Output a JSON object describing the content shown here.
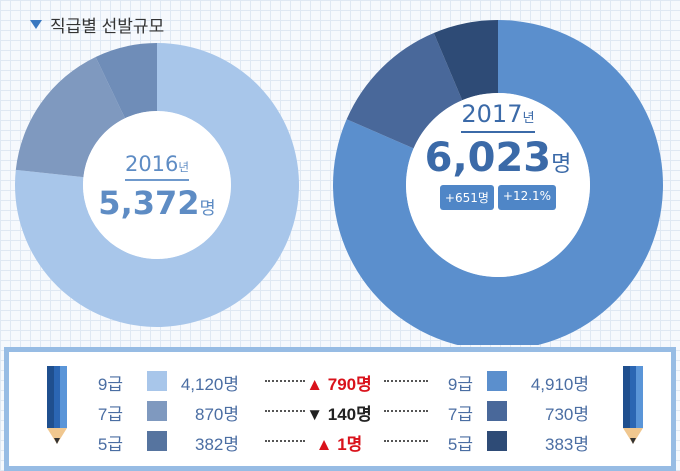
{
  "title": "직급별 선발규모",
  "unit_year": "년",
  "unit_person": "명",
  "colors": {
    "c9_2016": "#a8c6ea",
    "c7_2016": "#7f99bf",
    "c5_2016": "#6f8db8",
    "c9_2017": "#5b8fcd",
    "c7_2017": "#49689a",
    "c5_2017": "#2e4b76"
  },
  "chart_data": [
    {
      "type": "pie",
      "label": "2016년",
      "year": "2016",
      "total": "5,372",
      "categories": [
        "9급",
        "7급",
        "5급"
      ],
      "values": [
        4120,
        870,
        382
      ]
    },
    {
      "type": "pie",
      "label": "2017년",
      "year": "2017",
      "total": "6,023",
      "categories": [
        "9급",
        "7급",
        "5급"
      ],
      "values": [
        4910,
        730,
        383
      ],
      "badges": [
        "+651명",
        "+12.1%"
      ]
    }
  ],
  "table": {
    "rows": [
      {
        "grade": "9급",
        "left": "4,120명",
        "change": "790명",
        "dir": "up",
        "right": "4,910명"
      },
      {
        "grade": "7급",
        "left": "870명",
        "change": "140명",
        "dir": "down",
        "right": "730명"
      },
      {
        "grade": "5급",
        "left": "382명",
        "change": "1명",
        "dir": "up",
        "right": "383명"
      }
    ]
  }
}
